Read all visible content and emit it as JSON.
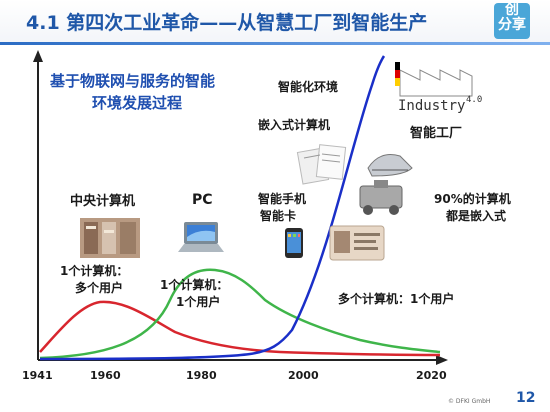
{
  "title": "4.1 第四次工业革命——从智慧工厂到智能生产",
  "logo": {
    "line1": "创",
    "line2": "分享",
    "sub": "创分享"
  },
  "subtitle_line1": "基于物联网与服务的智能",
  "subtitle_line2": "环境发展过程",
  "labels": {
    "smart_env": "智能化环境",
    "embedded": "嵌入式计算机",
    "smart_factory": "智能工厂",
    "mainframe": "中央计算机",
    "pc": "PC",
    "smartphone_line1": "智能手机",
    "smartphone_line2": "智能卡",
    "embedded_pct_line1": "90%的计算机",
    "embedded_pct_line2": "都是嵌入式",
    "one_many_line1": "1个计算机：",
    "one_many_line2": "多个用户",
    "one_one_line1": "1个计算机：",
    "one_one_line2": "1个用户",
    "many_one": "多个计算机：1个用户"
  },
  "industry_badge": {
    "text": "Industry",
    "version": "4.0"
  },
  "axis": {
    "ticks": [
      "1941",
      "1960",
      "1980",
      "2000",
      "2020"
    ]
  },
  "chart_data": {
    "type": "line",
    "x_ticks": [
      1941,
      1960,
      1980,
      2000,
      2020
    ],
    "series": [
      {
        "color": "#d8262e",
        "points": [
          [
            1941,
            4
          ],
          [
            1950,
            30
          ],
          [
            1960,
            45
          ],
          [
            1970,
            38
          ],
          [
            1980,
            18
          ],
          [
            1990,
            8
          ],
          [
            2000,
            4
          ],
          [
            2020,
            2
          ]
        ]
      },
      {
        "color": "#3fb54a",
        "points": [
          [
            1941,
            0
          ],
          [
            1965,
            10
          ],
          [
            1975,
            60
          ],
          [
            1980,
            70
          ],
          [
            1985,
            62
          ],
          [
            1990,
            50
          ],
          [
            2000,
            30
          ],
          [
            2010,
            16
          ],
          [
            2020,
            8
          ]
        ]
      },
      {
        "color": "#1a2fc8",
        "points": [
          [
            1941,
            0
          ],
          [
            1985,
            1
          ],
          [
            1995,
            6
          ],
          [
            2000,
            30
          ],
          [
            2005,
            90
          ],
          [
            2010,
            190
          ],
          [
            2015,
            300
          ]
        ]
      }
    ],
    "colors": {
      "mainframe": "#d8262e",
      "pc": "#3fb54a",
      "ubiquitous": "#1a2fc8"
    }
  },
  "copyright": "© DFKI GmbH",
  "page_number": "12"
}
